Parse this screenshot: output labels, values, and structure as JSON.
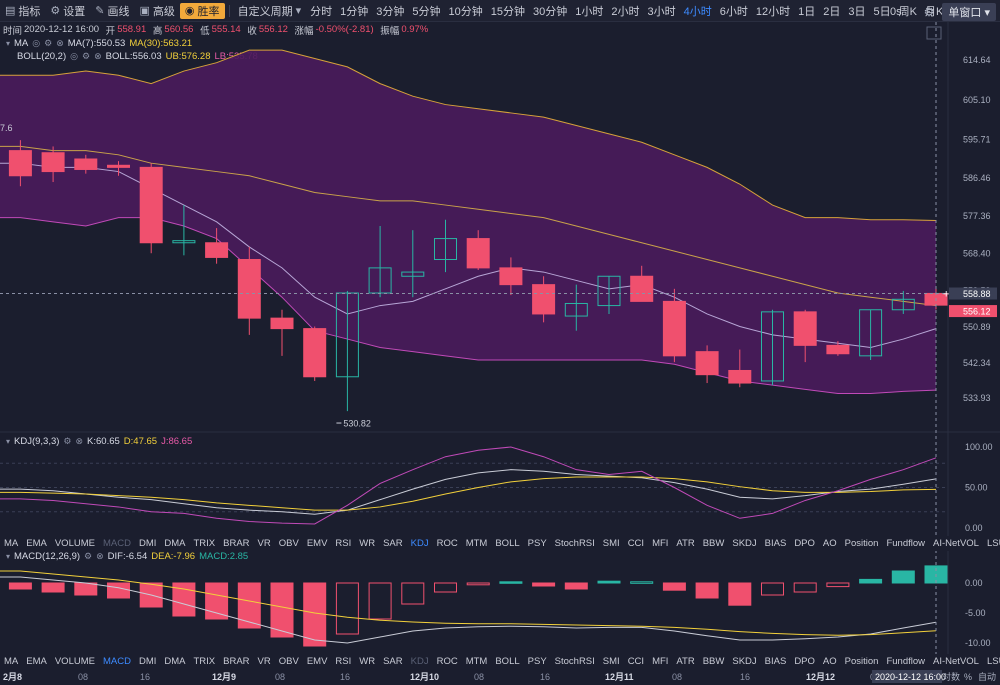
{
  "toolbar": {
    "items": [
      {
        "icon": "indicator-icon",
        "label": "指标"
      },
      {
        "icon": "settings-icon",
        "label": "设置"
      },
      {
        "icon": "draw-icon",
        "label": "画线"
      },
      {
        "icon": "advanced-icon",
        "label": "高级"
      },
      {
        "icon": "winrate-icon",
        "label": "胜率"
      }
    ],
    "custom_period": "自定义周期",
    "periods": [
      "分时",
      "1分钟",
      "3分钟",
      "5分钟",
      "10分钟",
      "15分钟",
      "30分钟",
      "1小时",
      "2小时",
      "3小时",
      "4小时",
      "6小时",
      "12小时",
      "1日",
      "2日",
      "3日",
      "5日",
      "周K",
      "月K",
      "季K",
      "年K"
    ],
    "active_period": "4小时",
    "seconds": "0s",
    "window_label": "单窗口"
  },
  "ohlc": {
    "time_label": "时间",
    "time": "2020-12-12 16:00",
    "open_label": "开",
    "open": "558.91",
    "high_label": "高",
    "high": "560.56",
    "low_label": "低",
    "low": "555.14",
    "close_label": "收",
    "close": "556.12",
    "change_label": "涨幅",
    "change": "-0.50%(-2.81)",
    "amplitude_label": "振幅",
    "amplitude": "0.97%"
  },
  "ma": {
    "name": "MA",
    "ma7": "MA(7):550.53",
    "ma30": "MA(30):563.21"
  },
  "boll": {
    "name": "BOLL(20,2)",
    "mid": "BOLL:556.03",
    "ub": "UB:576.28",
    "lb": "LB:535.78"
  },
  "kdj": {
    "name": "KDJ(9,3,3)",
    "k": "K:60.65",
    "d": "D:47.65",
    "j": "J:86.65"
  },
  "macd": {
    "name": "MACD(12,26,9)",
    "dif": "DIF:-6.54",
    "dea": "DEA:-7.96",
    "macd": "MACD:2.85"
  },
  "indicator_tabs": [
    "MA",
    "EMA",
    "VOLUME",
    "MACD",
    "DMI",
    "DMA",
    "TRIX",
    "BRAR",
    "VR",
    "OBV",
    "EMV",
    "RSI",
    "WR",
    "SAR",
    "KDJ",
    "ROC",
    "MTM",
    "BOLL",
    "PSY",
    "StochRSI",
    "SMI",
    "CCI",
    "MFI",
    "ATR",
    "BBW",
    "SKDJ",
    "BIAS",
    "DPO",
    "AO",
    "Position",
    "Fundflow",
    "AI-NetVOL",
    "LSUR"
  ],
  "tab_row1_active": "KDJ",
  "tab_row1_dim": "MACD",
  "tab_row2_active": "MACD",
  "tab_row2_dim": "KDJ",
  "main_axis": [
    "614.64",
    "605.10",
    "595.71",
    "586.46",
    "577.36",
    "568.40",
    "559.59",
    "550.89",
    "542.34",
    "533.93"
  ],
  "kdj_axis": [
    "100.00",
    "50.00",
    "0.00"
  ],
  "macd_axis": [
    "0.00",
    "-5.00",
    "-10.00"
  ],
  "price_tags": {
    "crosshair": "558.88",
    "last": "556.12"
  },
  "low_marker": "530.82",
  "left_top_label": "7.6",
  "time_axis": [
    "2月8",
    "08",
    "16",
    "12月9",
    "08",
    "16",
    "12月10",
    "08",
    "16",
    "12月11",
    "08",
    "16",
    "12月12",
    "08"
  ],
  "bottom_right": {
    "crosshair_time": "2020-12-12 16:00",
    "log": "对数",
    "pct": "%",
    "auto": "自动"
  },
  "colors": {
    "up": "#29b6a4",
    "down": "#f0506e",
    "band": "#4a1b5c",
    "ma7": "#e6e6f0",
    "ma30": "#f2d03b",
    "ub": "#d6a23a",
    "lb": "#c04ab8",
    "bg": "#1b1e2e",
    "accent": "#3d8bff"
  },
  "chart_data": {
    "type": "candlestick",
    "candles": [
      {
        "o": 593.0,
        "h": 595.5,
        "l": 584.5,
        "c": 587.0
      },
      {
        "o": 592.5,
        "h": 594.0,
        "l": 585.5,
        "c": 588.0
      },
      {
        "o": 591.0,
        "h": 592.0,
        "l": 587.5,
        "c": 588.5
      },
      {
        "o": 589.5,
        "h": 590.5,
        "l": 587.0,
        "c": 589.0
      },
      {
        "o": 589.0,
        "h": 590.0,
        "l": 568.5,
        "c": 571.0
      },
      {
        "o": 571.0,
        "h": 580.0,
        "l": 568.0,
        "c": 571.5
      },
      {
        "o": 571.0,
        "h": 574.5,
        "l": 566.0,
        "c": 567.5
      },
      {
        "o": 567.0,
        "h": 570.0,
        "l": 549.0,
        "c": 553.0
      },
      {
        "o": 553.0,
        "h": 555.0,
        "l": 544.0,
        "c": 550.5
      },
      {
        "o": 550.5,
        "h": 551.0,
        "l": 538.0,
        "c": 539.0
      },
      {
        "o": 539.0,
        "h": 559.5,
        "l": 530.8,
        "c": 559.0
      },
      {
        "o": 559.0,
        "h": 575.0,
        "l": 558.0,
        "c": 565.0
      },
      {
        "o": 563.0,
        "h": 574.0,
        "l": 558.0,
        "c": 564.0
      },
      {
        "o": 567.0,
        "h": 576.5,
        "l": 564.0,
        "c": 572.0
      },
      {
        "o": 572.0,
        "h": 574.0,
        "l": 564.5,
        "c": 565.0
      },
      {
        "o": 565.0,
        "h": 567.5,
        "l": 558.5,
        "c": 561.0
      },
      {
        "o": 561.0,
        "h": 563.0,
        "l": 552.0,
        "c": 554.0
      },
      {
        "o": 553.5,
        "h": 561.0,
        "l": 550.0,
        "c": 556.5
      },
      {
        "o": 556.0,
        "h": 563.0,
        "l": 554.0,
        "c": 563.0
      },
      {
        "o": 563.0,
        "h": 565.5,
        "l": 557.0,
        "c": 557.0
      },
      {
        "o": 557.0,
        "h": 560.0,
        "l": 542.5,
        "c": 544.0
      },
      {
        "o": 545.0,
        "h": 546.5,
        "l": 537.5,
        "c": 539.5
      },
      {
        "o": 540.5,
        "h": 545.5,
        "l": 536.5,
        "c": 537.5
      },
      {
        "o": 538.0,
        "h": 555.0,
        "l": 537.0,
        "c": 554.5
      },
      {
        "o": 554.5,
        "h": 555.0,
        "l": 542.5,
        "c": 546.5
      },
      {
        "o": 546.5,
        "h": 547.5,
        "l": 544.0,
        "c": 544.5
      },
      {
        "o": 544.0,
        "h": 555.0,
        "l": 543.0,
        "c": 555.0
      },
      {
        "o": 555.0,
        "h": 559.5,
        "l": 554.0,
        "c": 557.5
      },
      {
        "o": 558.9,
        "h": 560.6,
        "l": 555.1,
        "c": 556.1
      }
    ],
    "ma7": [
      590,
      589,
      589,
      588,
      584,
      580,
      576,
      570,
      565,
      558,
      554,
      556,
      557,
      560,
      563,
      565,
      564,
      562,
      560,
      561,
      558,
      554,
      551,
      549,
      548,
      547,
      546,
      548,
      550.5
    ],
    "boll_upper": [
      611,
      611,
      612,
      611,
      609,
      612,
      614,
      617,
      617,
      615,
      613,
      609,
      606,
      604,
      603,
      602,
      601,
      599,
      597,
      595,
      592,
      589,
      585,
      580,
      577,
      577,
      576.5,
      576.5,
      576.3
    ],
    "boll_mid": [
      594,
      593,
      593,
      592,
      590,
      589,
      588,
      587,
      585,
      583,
      582,
      581,
      581,
      580,
      579,
      578,
      577,
      575,
      573,
      571,
      569,
      567,
      565,
      563,
      561,
      559,
      558,
      557,
      556
    ],
    "boll_lower": [
      577,
      576,
      575,
      577,
      577,
      575,
      572,
      565,
      558,
      550,
      548,
      546,
      545,
      544,
      543,
      543,
      543,
      543,
      543,
      543,
      542,
      540,
      538,
      537,
      536,
      535,
      535,
      535.5,
      535.8
    ],
    "kdj_k": [
      48,
      46,
      42,
      38,
      35,
      30,
      25,
      22,
      20,
      17,
      22,
      35,
      48,
      60,
      68,
      72,
      70,
      66,
      64,
      62,
      56,
      48,
      38,
      36,
      40,
      45,
      48,
      54,
      60.65
    ],
    "kdj_d": [
      44,
      43,
      42,
      40,
      38,
      35,
      31,
      28,
      25,
      22,
      22,
      26,
      33,
      42,
      50,
      57,
      61,
      63,
      63,
      63,
      61,
      57,
      51,
      46,
      44,
      44,
      45,
      47,
      47.65
    ],
    "kdj_j": [
      36,
      34,
      30,
      26,
      20,
      18,
      12,
      8,
      6,
      5,
      28,
      55,
      72,
      88,
      96,
      100,
      88,
      72,
      66,
      70,
      50,
      28,
      12,
      18,
      34,
      46,
      60,
      72,
      86.65
    ],
    "macd_hist": [
      -1.0,
      -1.5,
      -2.0,
      -2.5,
      -4.0,
      -5.5,
      -6.0,
      -7.5,
      -9.0,
      -10.5,
      -8.5,
      -6.0,
      -3.5,
      -1.5,
      -0.3,
      0.2,
      -0.5,
      -1.0,
      0.3,
      0.2,
      -1.2,
      -2.5,
      -3.7,
      -2.0,
      -1.5,
      -0.6,
      0.6,
      2.0,
      2.85
    ],
    "macd_dif": [
      1.0,
      0.5,
      0,
      -0.8,
      -2.0,
      -3.5,
      -5.0,
      -6.5,
      -8.0,
      -9.5,
      -10.0,
      -9.0,
      -8.0,
      -7.5,
      -7.3,
      -7.2,
      -7.3,
      -7.5,
      -7.4,
      -7.4,
      -8.0,
      -8.8,
      -9.5,
      -9.5,
      -9.3,
      -9.0,
      -8.5,
      -7.5,
      -6.54
    ],
    "macd_dea": [
      2.0,
      1.5,
      1.0,
      0.5,
      -0.2,
      -1.0,
      -2.0,
      -3.0,
      -4.0,
      -5.0,
      -5.7,
      -6.2,
      -6.5,
      -6.7,
      -6.8,
      -6.8,
      -6.9,
      -7.0,
      -7.1,
      -7.2,
      -7.4,
      -7.7,
      -8.1,
      -8.4,
      -8.6,
      -8.7,
      -8.6,
      -8.3,
      -7.96
    ]
  }
}
